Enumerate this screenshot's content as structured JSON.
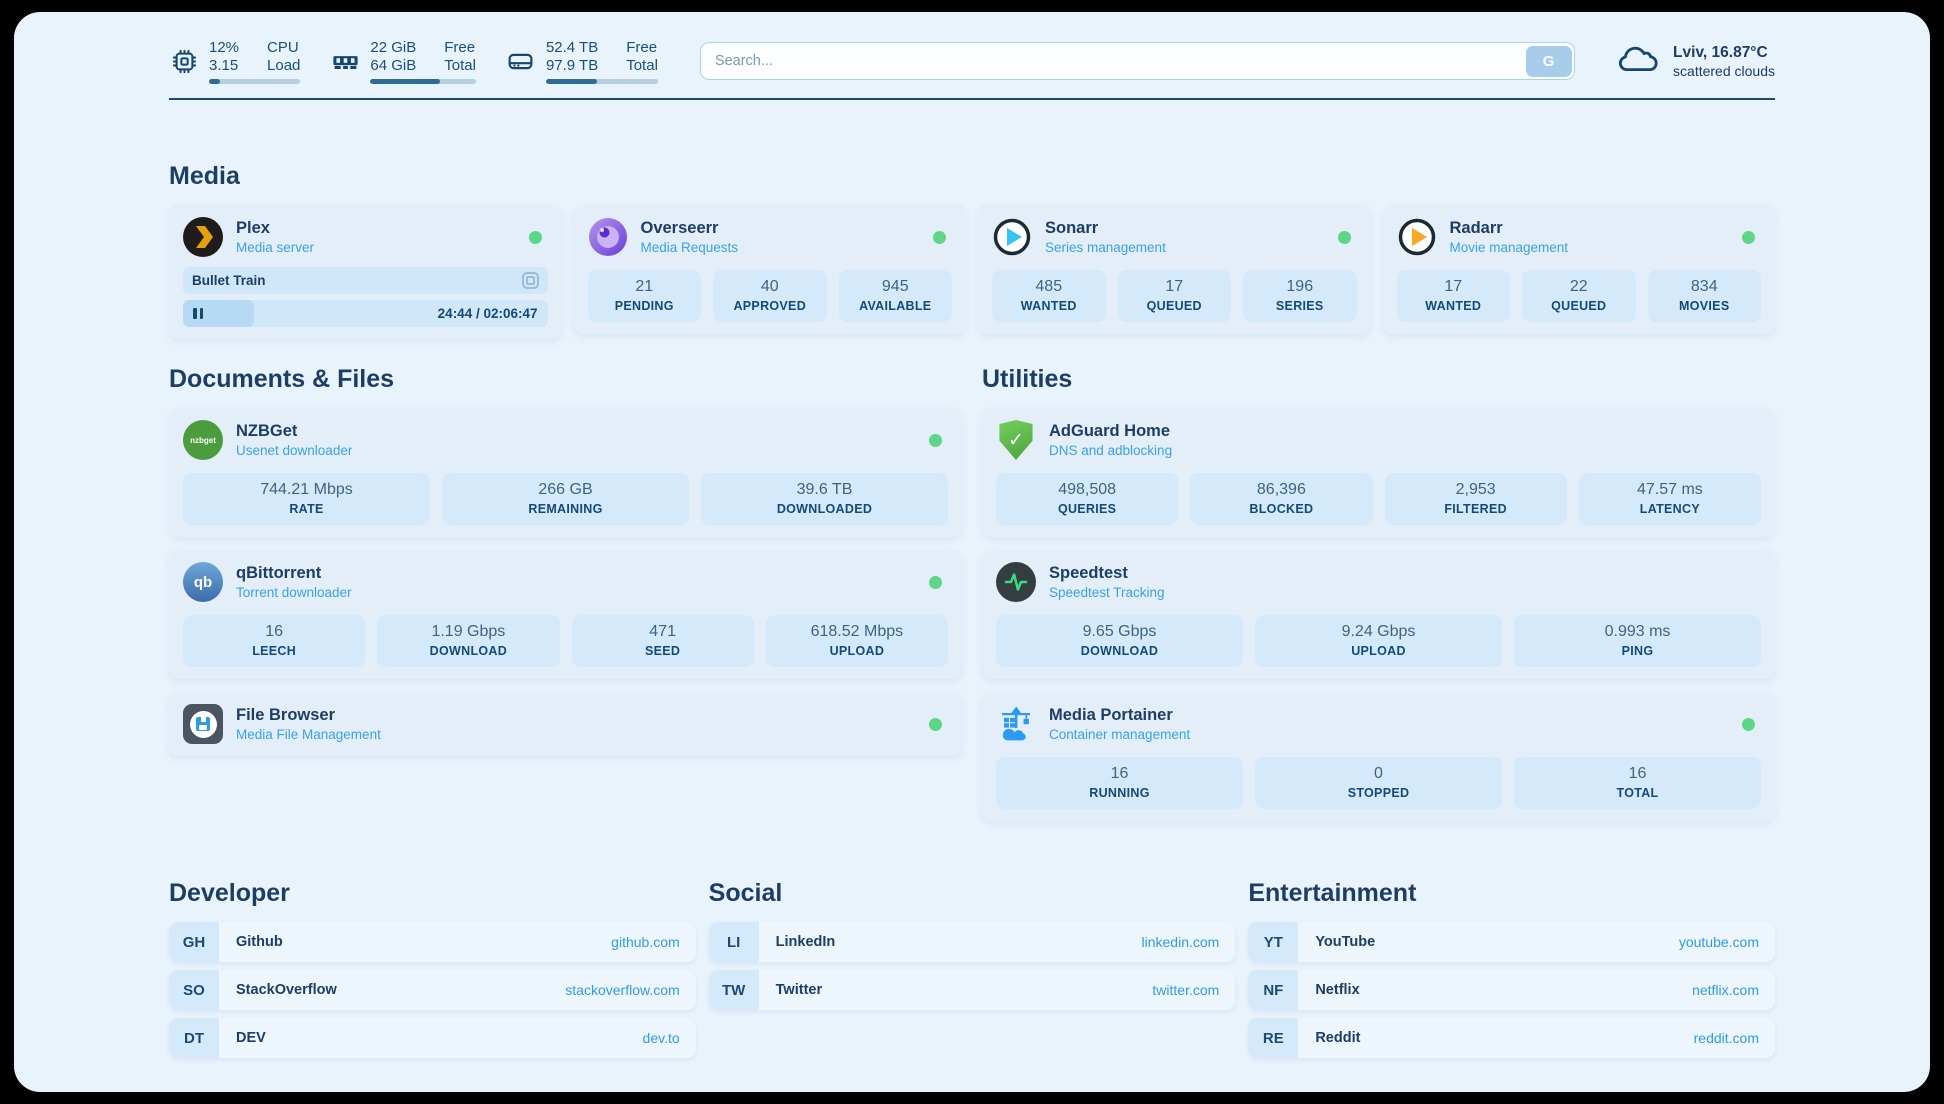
{
  "colors": {
    "page_background": "#e9f3fc",
    "card_background": "#e4eef9",
    "stat_background": "#d4eafb",
    "accent_blue": "#2f9ce8",
    "navy_text": "#1d3e63",
    "subtitle_blue": "#38a3e8",
    "status_online_green": "#5ed687",
    "progress_fill": "#2e6b97"
  },
  "header": {
    "widgets": [
      {
        "icon": "cpu-icon",
        "value1": "12%",
        "value2": "3.15",
        "label1": "CPU",
        "label2": "Load",
        "progress": 12
      },
      {
        "icon": "memory-icon",
        "value1": "22 GiB",
        "value2": "64 GiB",
        "label1": "Free",
        "label2": "Total",
        "progress": 66
      },
      {
        "icon": "disk-icon",
        "value1": "52.4 TB",
        "value2": "97.9 TB",
        "label1": "Free",
        "label2": "Total",
        "progress": 46
      }
    ],
    "search": {
      "placeholder": "Search...",
      "button_label": "G"
    },
    "weather": {
      "icon": "cloud-icon",
      "location_temp": "Lviv, 16.87°C",
      "condition": "scattered clouds"
    }
  },
  "sections": {
    "media": {
      "title": "Media",
      "apps": [
        {
          "name": "Plex",
          "subtitle": "Media server",
          "icon": "plex-icon",
          "online": true,
          "now_playing": {
            "title": "Bullet Train",
            "time": "24:44 / 02:06:47",
            "progress": 19.5
          }
        },
        {
          "name": "Overseerr",
          "subtitle": "Media Requests",
          "icon": "overseerr-icon",
          "online": true,
          "stats": [
            {
              "value": "21",
              "label": "PENDING"
            },
            {
              "value": "40",
              "label": "APPROVED"
            },
            {
              "value": "945",
              "label": "AVAILABLE"
            }
          ]
        },
        {
          "name": "Sonarr",
          "subtitle": "Series management",
          "icon": "sonarr-icon",
          "online": true,
          "stats": [
            {
              "value": "485",
              "label": "WANTED"
            },
            {
              "value": "17",
              "label": "QUEUED"
            },
            {
              "value": "196",
              "label": "SERIES"
            }
          ]
        },
        {
          "name": "Radarr",
          "subtitle": "Movie management",
          "icon": "radarr-icon",
          "online": true,
          "stats": [
            {
              "value": "17",
              "label": "WANTED"
            },
            {
              "value": "22",
              "label": "QUEUED"
            },
            {
              "value": "834",
              "label": "MOVIES"
            }
          ]
        }
      ]
    },
    "documents": {
      "title": "Documents & Files",
      "apps": [
        {
          "name": "NZBGet",
          "subtitle": "Usenet downloader",
          "icon": "nzbget-icon",
          "online": true,
          "stats": [
            {
              "value": "744.21 Mbps",
              "label": "RATE"
            },
            {
              "value": "266 GB",
              "label": "REMAINING"
            },
            {
              "value": "39.6 TB",
              "label": "DOWNLOADED"
            }
          ]
        },
        {
          "name": "qBittorrent",
          "subtitle": "Torrent downloader",
          "icon": "qbittorrent-icon",
          "online": true,
          "stats": [
            {
              "value": "16",
              "label": "LEECH"
            },
            {
              "value": "1.19 Gbps",
              "label": "DOWNLOAD"
            },
            {
              "value": "471",
              "label": "SEED"
            },
            {
              "value": "618.52 Mbps",
              "label": "UPLOAD"
            }
          ]
        },
        {
          "name": "File Browser",
          "subtitle": "Media File Management",
          "icon": "filebrowser-icon",
          "online": true
        }
      ]
    },
    "utilities": {
      "title": "Utilities",
      "apps": [
        {
          "name": "AdGuard Home",
          "subtitle": "DNS and adblocking",
          "icon": "adguard-icon",
          "online": false,
          "stats": [
            {
              "value": "498,508",
              "label": "QUERIES"
            },
            {
              "value": "86,396",
              "label": "BLOCKED"
            },
            {
              "value": "2,953",
              "label": "FILTERED"
            },
            {
              "value": "47.57 ms",
              "label": "LATENCY"
            }
          ]
        },
        {
          "name": "Speedtest",
          "subtitle": "Speedtest Tracking",
          "icon": "speedtest-icon",
          "online": false,
          "stats": [
            {
              "value": "9.65 Gbps",
              "label": "DOWNLOAD"
            },
            {
              "value": "9.24 Gbps",
              "label": "UPLOAD"
            },
            {
              "value": "0.993 ms",
              "label": "PING"
            }
          ]
        },
        {
          "name": "Media Portainer",
          "subtitle": "Container management",
          "icon": "portainer-icon",
          "online": true,
          "stats": [
            {
              "value": "16",
              "label": "RUNNING"
            },
            {
              "value": "0",
              "label": "STOPPED"
            },
            {
              "value": "16",
              "label": "TOTAL"
            }
          ]
        }
      ]
    },
    "bookmarks": [
      {
        "title": "Developer",
        "links": [
          {
            "abbr": "GH",
            "name": "Github",
            "url": "github.com"
          },
          {
            "abbr": "SO",
            "name": "StackOverflow",
            "url": "stackoverflow.com"
          },
          {
            "abbr": "DT",
            "name": "DEV",
            "url": "dev.to"
          }
        ]
      },
      {
        "title": "Social",
        "links": [
          {
            "abbr": "LI",
            "name": "LinkedIn",
            "url": "linkedin.com"
          },
          {
            "abbr": "TW",
            "name": "Twitter",
            "url": "twitter.com"
          }
        ]
      },
      {
        "title": "Entertainment",
        "links": [
          {
            "abbr": "YT",
            "name": "YouTube",
            "url": "youtube.com"
          },
          {
            "abbr": "NF",
            "name": "Netflix",
            "url": "netflix.com"
          },
          {
            "abbr": "RE",
            "name": "Reddit",
            "url": "reddit.com"
          }
        ]
      }
    ]
  }
}
